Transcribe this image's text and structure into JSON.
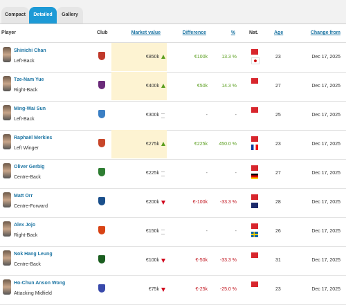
{
  "tabs": [
    "Compact",
    "Detailed",
    "Gallery"
  ],
  "table": {
    "headers": [
      "Player",
      "Club",
      "Market value",
      "Difference",
      "%",
      "Nat.",
      "Age",
      "Change from"
    ],
    "rows": [
      {
        "name": "Shinichi Chan",
        "position": "Left-Back",
        "value": "€850k",
        "difference": "€100k",
        "percent": "13.3 %",
        "age": "23",
        "date": "Dec 17, 2025"
      },
      {
        "name": "Tze-Nam Yue",
        "position": "Right-Back",
        "value": "€400k",
        "difference": "€50k",
        "percent": "14.3 %",
        "age": "27",
        "date": "Dec 17, 2025"
      },
      {
        "name": "Ming-Wai Sun",
        "position": "Left-Back",
        "value": "€300k",
        "difference": "-",
        "percent": "-",
        "age": "25",
        "date": "Dec 17, 2025"
      },
      {
        "name": "Raphaël Merkies",
        "position": "Left Winger",
        "value": "€275k",
        "difference": "€225k",
        "percent": "450.0 %",
        "age": "23",
        "date": "Dec 17, 2025"
      },
      {
        "name": "Oliver Gerbig",
        "position": "Centre-Back",
        "value": "€225k",
        "difference": "-",
        "percent": "-",
        "age": "27",
        "date": "Dec 17, 2025"
      },
      {
        "name": "Matt Orr",
        "position": "Centre-Forward",
        "value": "€200k",
        "difference": "€-100k",
        "percent": "-33.3 %",
        "age": "28",
        "date": "Dec 17, 2025"
      },
      {
        "name": "Alex Jojo",
        "position": "Right-Back",
        "value": "€150k",
        "difference": "-",
        "percent": "-",
        "age": "26",
        "date": "Dec 17, 2025"
      },
      {
        "name": "Nok Hang Leung",
        "position": "Centre-Back",
        "value": "€100k",
        "difference": "€-50k",
        "percent": "-33.3 %",
        "age": "31",
        "date": "Dec 17, 2025"
      },
      {
        "name": "Ho-Chun Anson Wong",
        "position": "Attacking Midfield",
        "value": "€75k",
        "difference": "€-25k",
        "percent": "-25.0 %",
        "age": "23",
        "date": "Dec 17, 2025"
      }
    ]
  }
}
